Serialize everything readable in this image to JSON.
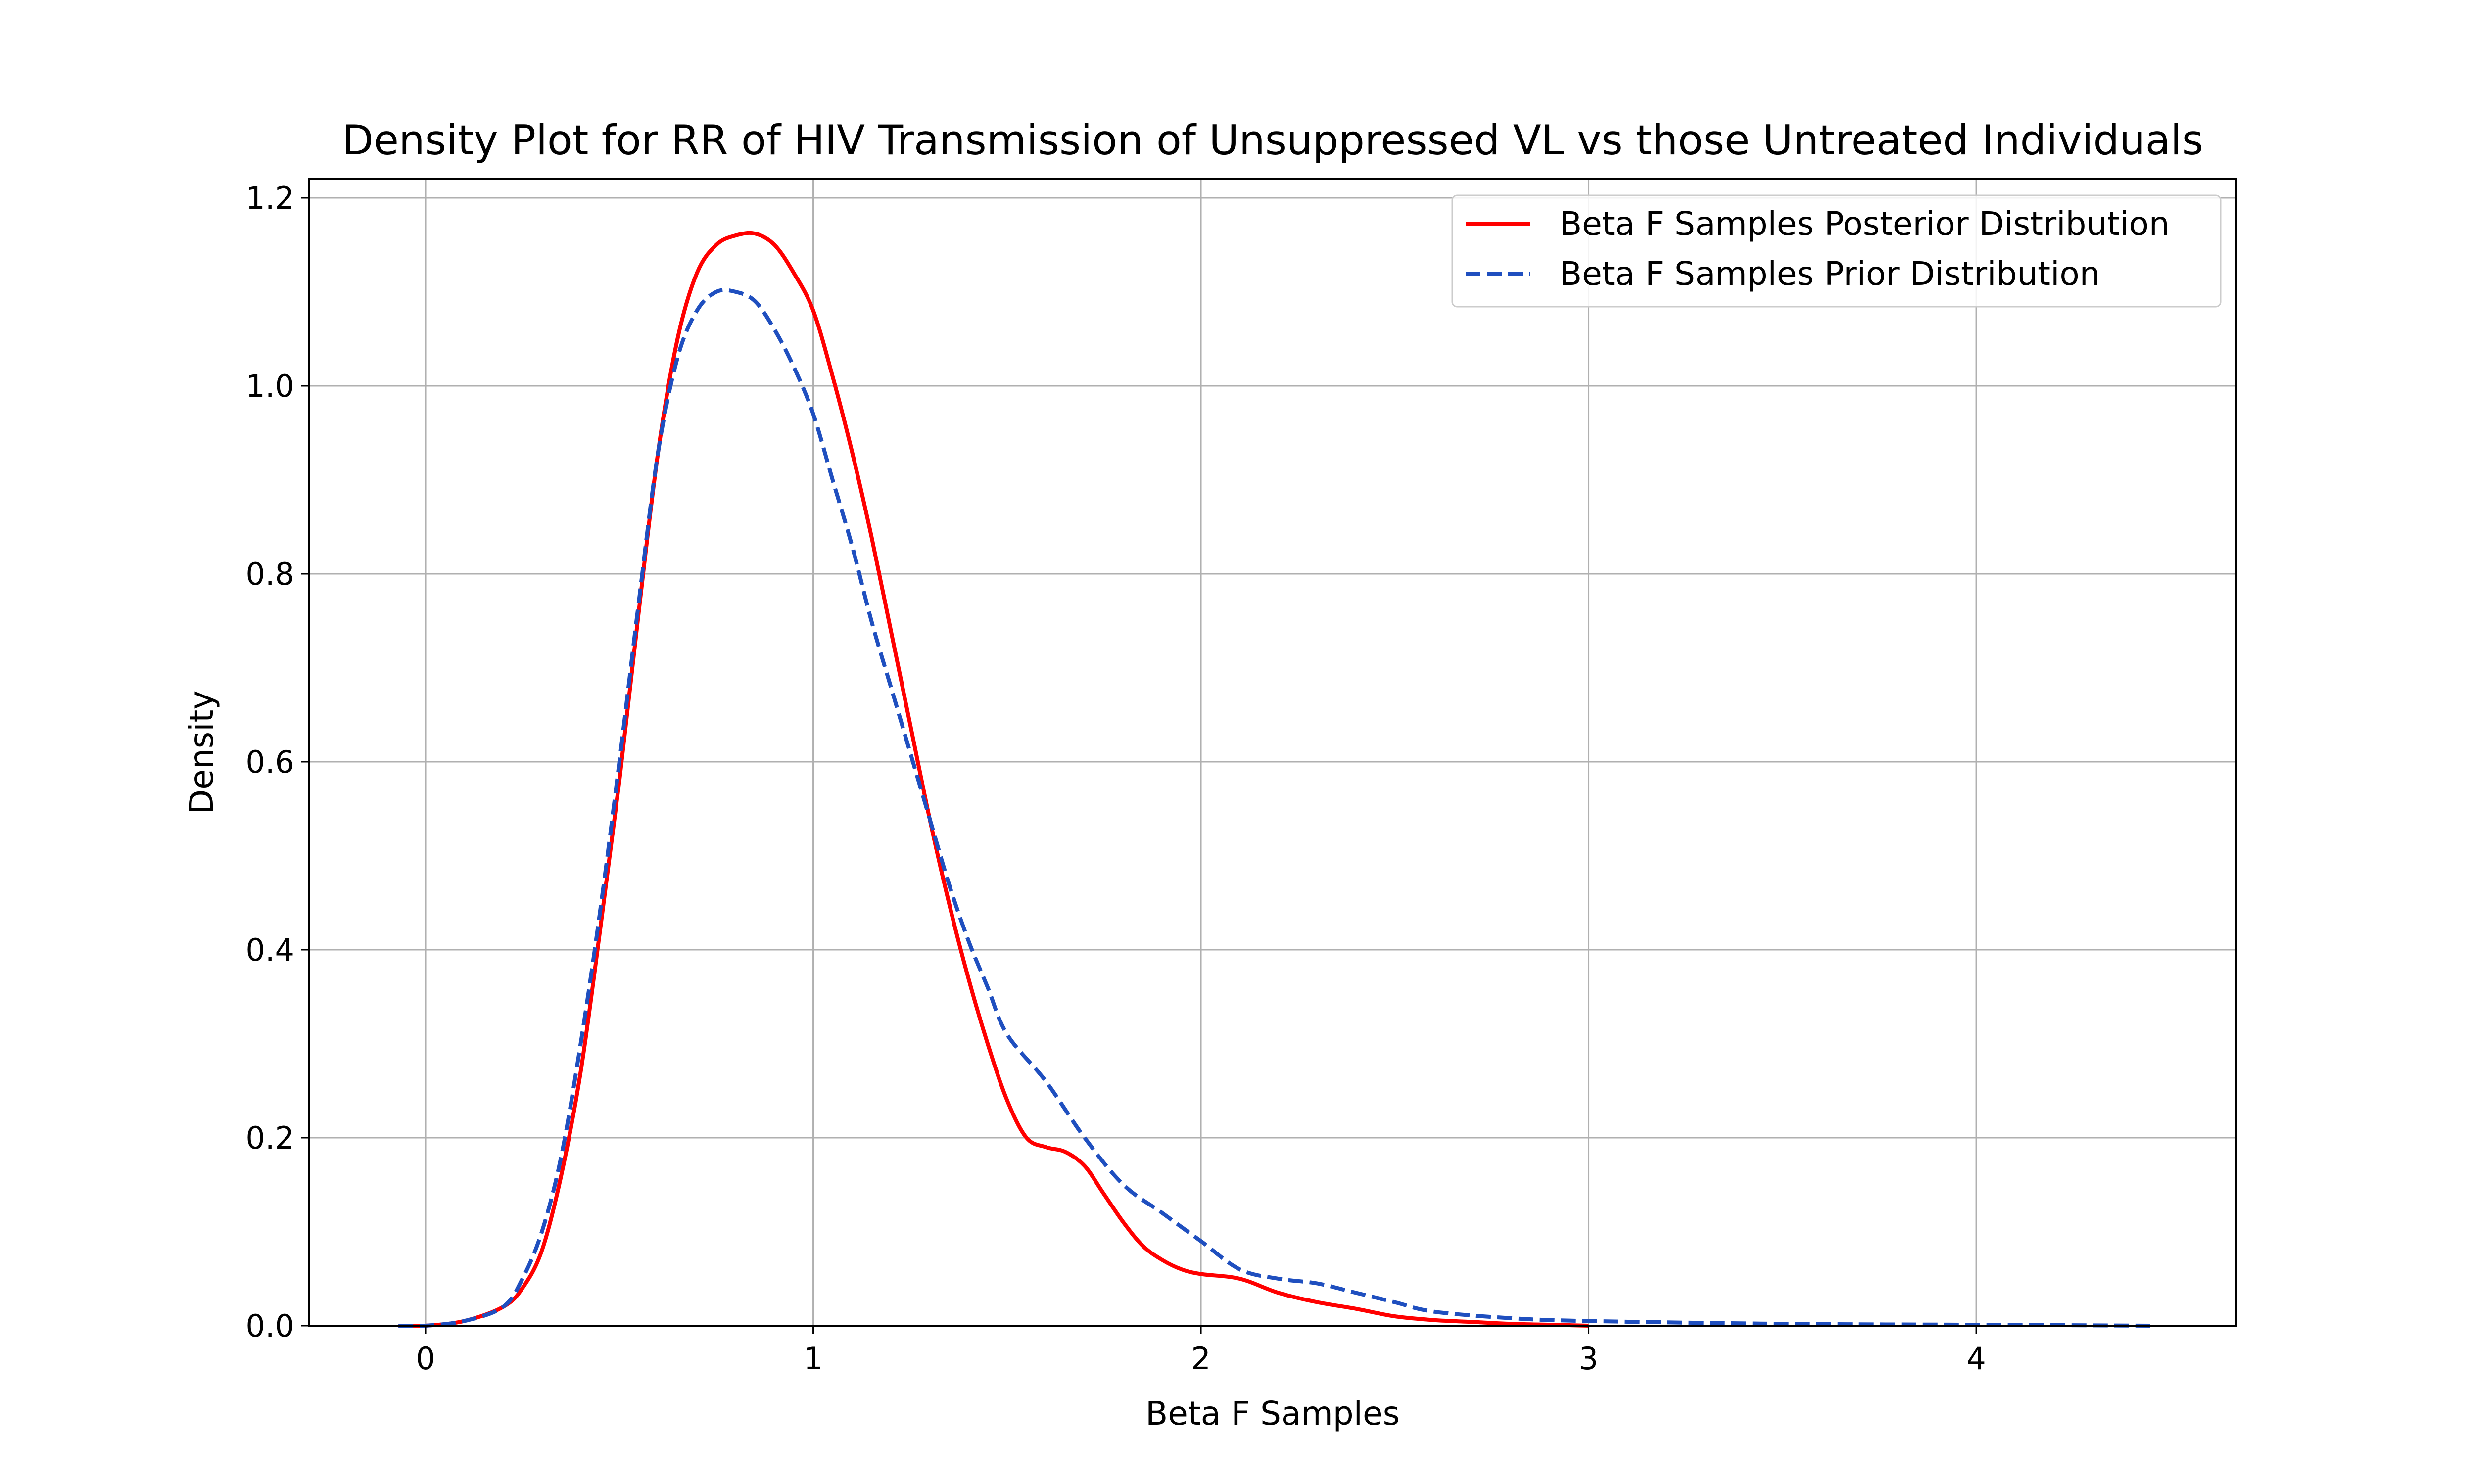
{
  "chart_data": {
    "type": "line",
    "title": "Density Plot for RR of HIV Transmission of Unsuppressed VL vs those Untreated Individuals",
    "xlabel": "Beta F Samples",
    "ylabel": "Density",
    "xlim": [
      -0.3,
      4.67
    ],
    "ylim": [
      0,
      1.22
    ],
    "xticks": [
      0,
      1,
      2,
      3,
      4
    ],
    "yticks": [
      0.0,
      0.2,
      0.4,
      0.6,
      0.8,
      1.0,
      1.2
    ],
    "xtick_labels": [
      "0",
      "1",
      "2",
      "3",
      "4"
    ],
    "ytick_labels": [
      "0.0",
      "0.2",
      "0.4",
      "0.6",
      "0.8",
      "1.0",
      "1.2"
    ],
    "grid": true,
    "legend_position": "top-right",
    "series": [
      {
        "name": "Beta F Samples Posterior Distribution",
        "color": "#ff0000",
        "style": "solid",
        "x": [
          -0.07,
          0.0,
          0.1,
          0.2,
          0.25,
          0.3,
          0.35,
          0.4,
          0.45,
          0.5,
          0.55,
          0.6,
          0.65,
          0.7,
          0.75,
          0.8,
          0.85,
          0.9,
          0.95,
          1.0,
          1.05,
          1.1,
          1.15,
          1.2,
          1.25,
          1.3,
          1.35,
          1.4,
          1.45,
          1.5,
          1.55,
          1.6,
          1.65,
          1.7,
          1.75,
          1.8,
          1.85,
          1.9,
          1.95,
          2.0,
          2.1,
          2.2,
          2.3,
          2.4,
          2.5,
          2.6,
          2.7,
          2.8,
          2.9,
          3.0
        ],
        "y": [
          0.0,
          0.0,
          0.005,
          0.02,
          0.04,
          0.08,
          0.16,
          0.27,
          0.42,
          0.58,
          0.76,
          0.93,
          1.05,
          1.12,
          1.15,
          1.16,
          1.162,
          1.15,
          1.12,
          1.08,
          1.01,
          0.93,
          0.84,
          0.74,
          0.64,
          0.54,
          0.45,
          0.37,
          0.3,
          0.24,
          0.2,
          0.19,
          0.185,
          0.17,
          0.14,
          0.11,
          0.085,
          0.07,
          0.06,
          0.055,
          0.05,
          0.035,
          0.025,
          0.018,
          0.01,
          0.006,
          0.004,
          0.002,
          0.001,
          0.0
        ]
      },
      {
        "name": "Beta F Samples Prior Distribution",
        "color": "#1f4fbf",
        "style": "dashed",
        "x": [
          -0.07,
          0.0,
          0.1,
          0.2,
          0.25,
          0.3,
          0.35,
          0.4,
          0.45,
          0.5,
          0.55,
          0.6,
          0.65,
          0.7,
          0.75,
          0.8,
          0.85,
          0.9,
          0.95,
          1.0,
          1.05,
          1.1,
          1.15,
          1.2,
          1.25,
          1.3,
          1.35,
          1.4,
          1.45,
          1.5,
          1.6,
          1.7,
          1.8,
          1.9,
          2.0,
          2.1,
          2.2,
          2.3,
          2.4,
          2.5,
          2.6,
          2.8,
          3.0,
          3.5,
          4.0,
          4.45
        ],
        "y": [
          0.0,
          0.0,
          0.005,
          0.02,
          0.05,
          0.1,
          0.18,
          0.3,
          0.44,
          0.6,
          0.77,
          0.93,
          1.03,
          1.08,
          1.1,
          1.1,
          1.09,
          1.06,
          1.02,
          0.97,
          0.9,
          0.83,
          0.75,
          0.68,
          0.61,
          0.54,
          0.47,
          0.41,
          0.36,
          0.31,
          0.26,
          0.2,
          0.15,
          0.12,
          0.09,
          0.06,
          0.05,
          0.045,
          0.035,
          0.025,
          0.015,
          0.008,
          0.005,
          0.002,
          0.001,
          0.0
        ]
      }
    ]
  }
}
